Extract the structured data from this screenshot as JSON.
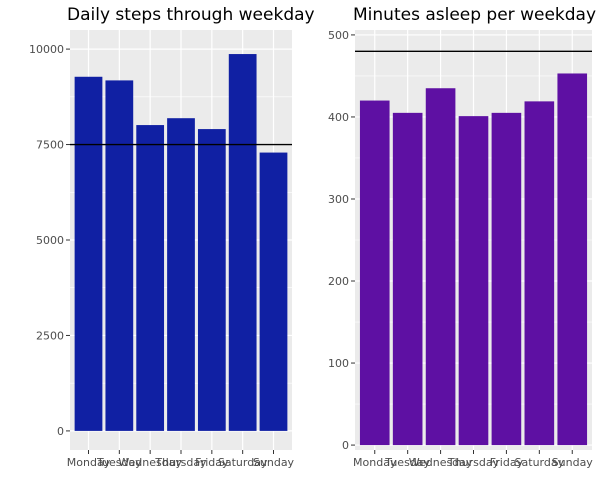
{
  "chart_data": [
    {
      "type": "bar",
      "title": "Daily steps through weekday",
      "xlabel": "",
      "ylabel": "",
      "categories": [
        "Monday",
        "Tuesday",
        "Wednesday",
        "Thursday",
        "Friday",
        "Saturday",
        "Sunday"
      ],
      "values": [
        9275,
        9180,
        8010,
        8190,
        7905,
        9870,
        7290
      ],
      "ylim": [
        -500,
        10500
      ],
      "yticks": [
        0,
        2500,
        5000,
        7500,
        10000
      ],
      "ytick_labels": [
        "0",
        "2500",
        "5000",
        "7500",
        "10000"
      ],
      "reference_line": 7500,
      "bar_color": "#1020A3",
      "panel_color": "#EBEBEB",
      "grid": true,
      "legend": "none"
    },
    {
      "type": "bar",
      "title": "Minutes asleep per weekday",
      "xlabel": "",
      "ylabel": "",
      "categories": [
        "Monday",
        "Tuesday",
        "Wednesday",
        "Thursday",
        "Friday",
        "Saturday",
        "Sunday"
      ],
      "values": [
        420,
        405,
        435,
        401,
        405,
        419,
        453
      ],
      "ylim": [
        -6,
        506
      ],
      "yticks": [
        0,
        100,
        200,
        300,
        400,
        500
      ],
      "ytick_labels": [
        "0",
        "100",
        "200",
        "300",
        "400",
        "500"
      ],
      "reference_line": 480,
      "bar_color": "#5E10A3",
      "panel_color": "#EBEBEB",
      "grid": true,
      "legend": "none"
    }
  ]
}
